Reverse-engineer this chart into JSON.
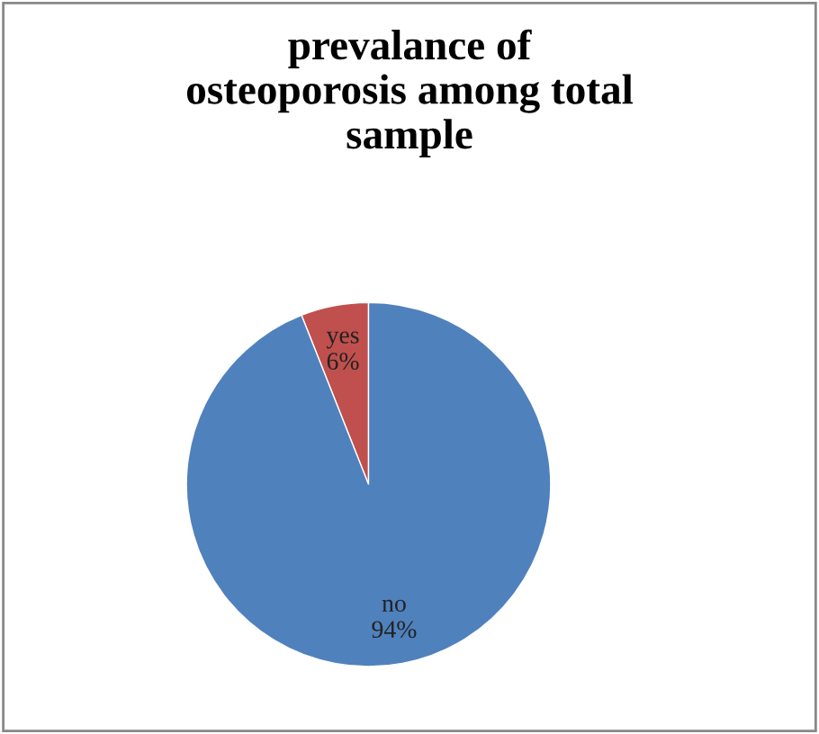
{
  "chart_data": {
    "type": "pie",
    "title": "prevalance of\nosteoporosis among total\nsample",
    "categories": [
      "yes",
      "no"
    ],
    "values": [
      6,
      94
    ],
    "value_labels": [
      "6%",
      "94%"
    ],
    "colors": [
      "#c0504d",
      "#4f81bd"
    ]
  }
}
